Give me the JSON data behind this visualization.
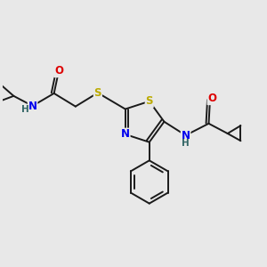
{
  "bg_color": "#e8e8e8",
  "bond_color": "#1a1a1a",
  "bond_width": 1.4,
  "atom_colors": {
    "N": "#0000ee",
    "O": "#dd0000",
    "S": "#bbaa00",
    "C": "#1a1a1a",
    "H": "#336666"
  },
  "font_size": 8.5,
  "fig_bg": "#e8e8e8",
  "xlim": [
    0,
    10
  ],
  "ylim": [
    0,
    10
  ]
}
